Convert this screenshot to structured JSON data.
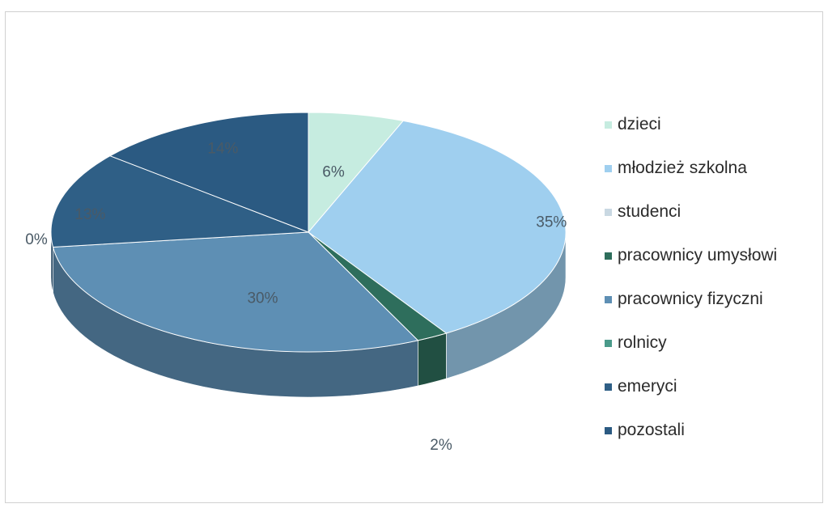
{
  "chart_data": {
    "type": "pie",
    "title": "",
    "categories": [
      "dzieci",
      "młodzież szkolna",
      "studenci",
      "pracownicy umysłowi",
      "pracownicy fizyczni",
      "rolnicy",
      "emeryci",
      "pozostali"
    ],
    "values": [
      6,
      35,
      0,
      2,
      30,
      0,
      13,
      14
    ],
    "data_labels": [
      "6%",
      "35%",
      "0%",
      "2%",
      "30%",
      "0%",
      "13%",
      "14%"
    ],
    "colors": [
      "#c6ece0",
      "#9fcfef",
      "#c9d8e2",
      "#2e6e5c",
      "#5e8fb4",
      "#4a9a8a",
      "#2f5f86",
      "#2b5a82"
    ],
    "legend_position": "right",
    "style": "3d-pie"
  }
}
